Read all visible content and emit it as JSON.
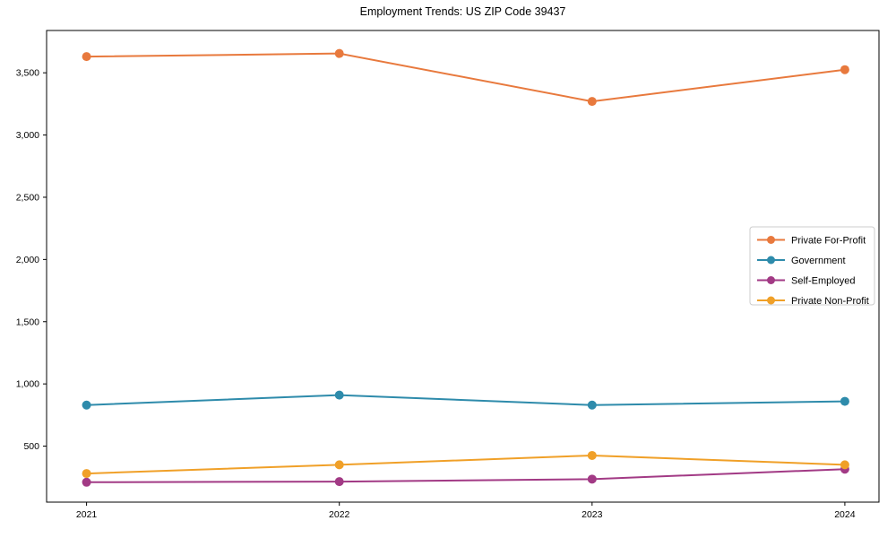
{
  "page": {
    "background": "#ffffff"
  },
  "chart_data": {
    "type": "line",
    "title": "Employment Trends: US ZIP Code 39437",
    "categories": [
      "2021",
      "2022",
      "2023",
      "2024"
    ],
    "series": [
      {
        "name": "Private For-Profit",
        "color": "#e8793d",
        "values": [
          3630,
          3655,
          3270,
          3525
        ]
      },
      {
        "name": "Government",
        "color": "#2e8bab",
        "values": [
          830,
          910,
          830,
          860
        ]
      },
      {
        "name": "Self-Employed",
        "color": "#a23a85",
        "values": [
          210,
          215,
          235,
          315
        ]
      },
      {
        "name": "Private Non-Profit",
        "color": "#f0a028",
        "values": [
          280,
          350,
          425,
          350
        ]
      }
    ],
    "xlabel": "",
    "ylabel": "",
    "ylim": [
      50,
      3840
    ],
    "yticks": [
      500,
      1000,
      1500,
      2000,
      2500,
      3000,
      3500
    ],
    "ytick_labels": [
      "500",
      "1,000",
      "1,500",
      "2,000",
      "2,500",
      "3,000",
      "3,500"
    ],
    "grid": false,
    "plot_border": true,
    "legend": {
      "position": "right-center-inside",
      "labels": [
        "Private For-Profit",
        "Government",
        "Self-Employed",
        "Private Non-Profit"
      ]
    }
  }
}
